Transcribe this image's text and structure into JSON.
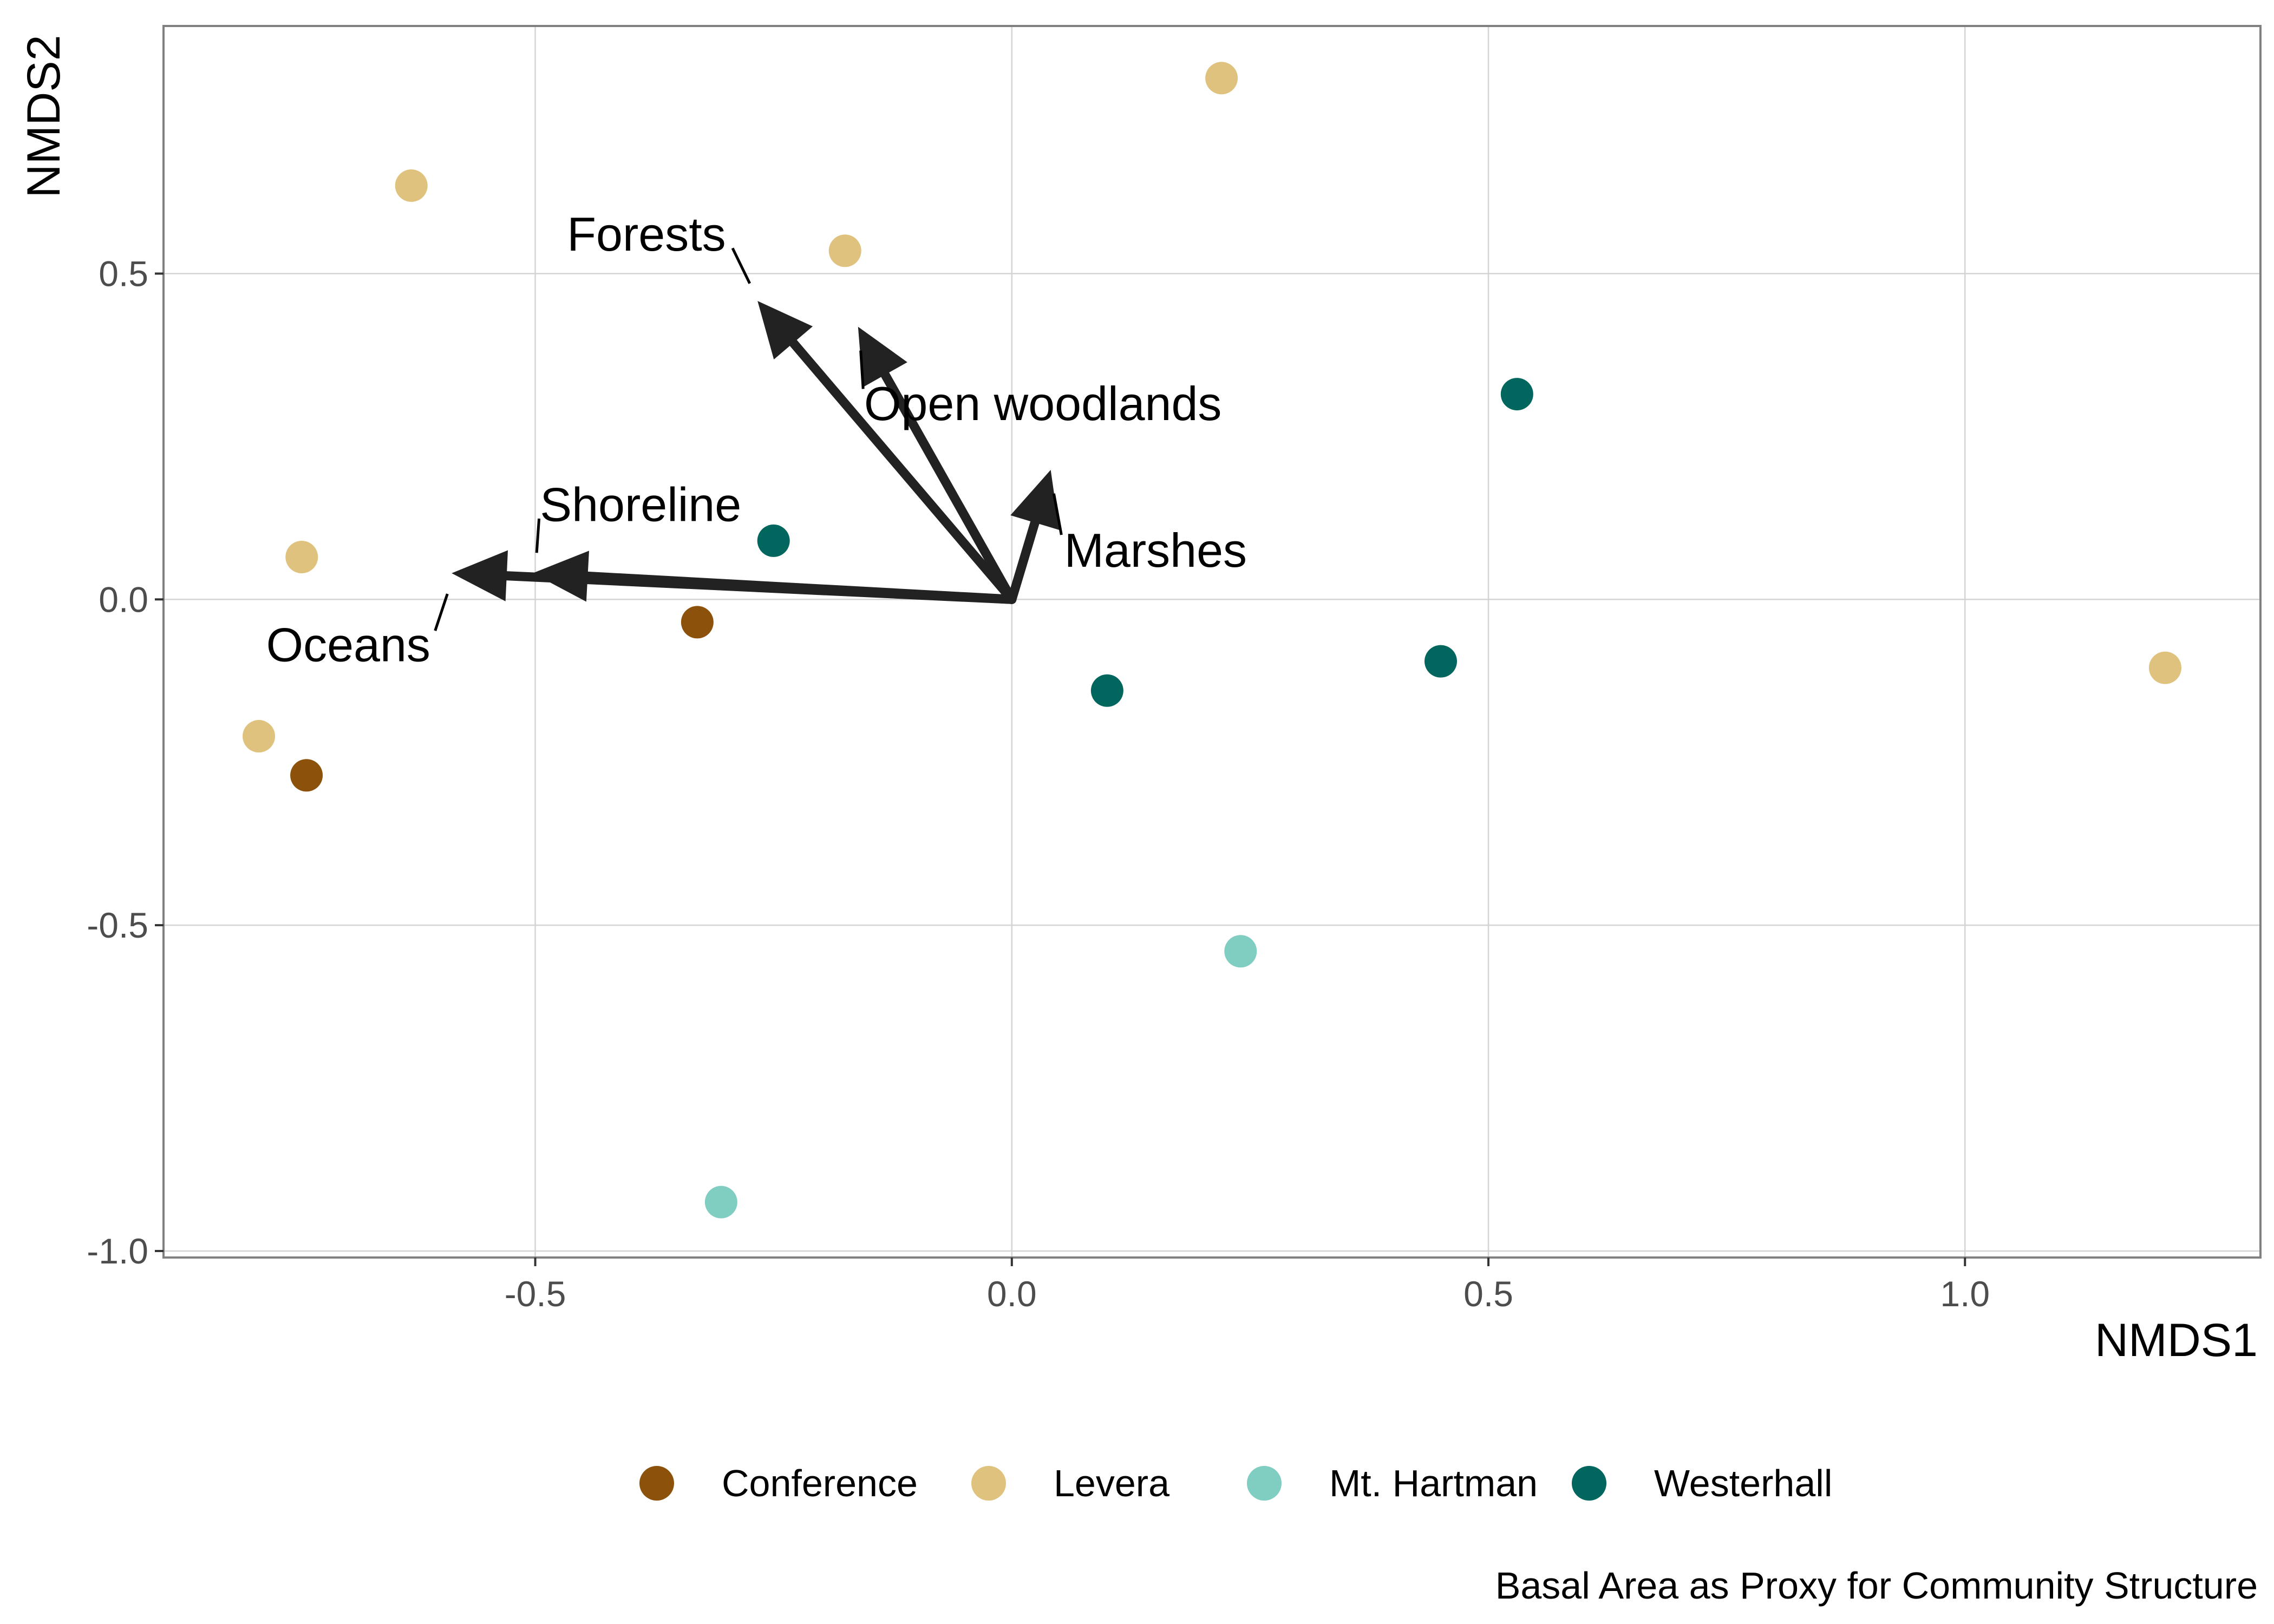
{
  "chart_data": {
    "type": "scatter",
    "title": "",
    "xlabel": "NMDS1",
    "ylabel": "NMDS2",
    "xlim": [
      -0.89,
      1.31
    ],
    "ylim": [
      -1.01,
      0.88
    ],
    "x_ticks": [
      -0.5,
      0.0,
      0.5,
      1.0
    ],
    "y_ticks": [
      -1.0,
      -0.5,
      0.0,
      0.5
    ],
    "x_tick_labels": [
      "-0.5",
      "0.0",
      "0.5",
      "1.0"
    ],
    "y_tick_labels": [
      "-1.0",
      "-0.5",
      "0.0",
      "0.5"
    ],
    "grid": true,
    "legend_position": "bottom",
    "caption": "Basal Area as Proxy for Community Structure",
    "groups": [
      {
        "name": "Conference",
        "color": "#8c510a"
      },
      {
        "name": "Levera",
        "color": "#dfc27d"
      },
      {
        "name": "Mt. Hartman",
        "color": "#80cdc1"
      },
      {
        "name": "Westerhall",
        "color": "#01665e"
      }
    ],
    "series": [
      {
        "name": "Conference",
        "points": [
          {
            "x": -0.33,
            "y": -0.035
          },
          {
            "x": -0.74,
            "y": -0.27
          }
        ]
      },
      {
        "name": "Levera",
        "points": [
          {
            "x": 0.22,
            "y": 0.8
          },
          {
            "x": -0.63,
            "y": 0.635
          },
          {
            "x": -0.175,
            "y": 0.535
          },
          {
            "x": -0.745,
            "y": 0.065
          },
          {
            "x": -0.79,
            "y": -0.21
          },
          {
            "x": 1.21,
            "y": -0.105
          }
        ]
      },
      {
        "name": "Mt. Hartman",
        "points": [
          {
            "x": 0.24,
            "y": -0.54
          },
          {
            "x": -0.305,
            "y": -0.925
          }
        ]
      },
      {
        "name": "Westerhall",
        "points": [
          {
            "x": 0.53,
            "y": 0.315
          },
          {
            "x": -0.25,
            "y": 0.09
          },
          {
            "x": 0.1,
            "y": -0.14
          },
          {
            "x": 0.45,
            "y": -0.095
          }
        ]
      }
    ],
    "vectors": [
      {
        "name": "Forests",
        "x": -0.265,
        "y": 0.455
      },
      {
        "name": "Open woodlands",
        "x": -0.16,
        "y": 0.415
      },
      {
        "name": "Marshes",
        "x": 0.04,
        "y": 0.195
      },
      {
        "name": "Shoreline",
        "x": -0.5,
        "y": 0.04
      },
      {
        "name": "Oceans",
        "x": -0.585,
        "y": 0.04
      }
    ],
    "vector_labels": [
      {
        "name": "Forests",
        "x": -0.3,
        "y": 0.56
      },
      {
        "name": "Open woodlands",
        "x": -0.155,
        "y": 0.3
      },
      {
        "name": "Marshes",
        "x": 0.055,
        "y": 0.075
      },
      {
        "name": "Shoreline",
        "x": -0.495,
        "y": 0.145
      },
      {
        "name": "Oceans",
        "x": -0.61,
        "y": -0.07
      }
    ],
    "arrow_color": "#222222"
  }
}
